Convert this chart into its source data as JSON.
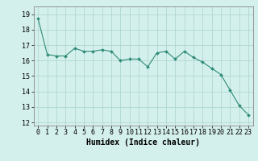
{
  "x": [
    0,
    1,
    2,
    3,
    4,
    5,
    6,
    7,
    8,
    9,
    10,
    11,
    12,
    13,
    14,
    15,
    16,
    17,
    18,
    19,
    20,
    21,
    22,
    23
  ],
  "y": [
    18.7,
    16.4,
    16.3,
    16.3,
    16.8,
    16.6,
    16.6,
    16.7,
    16.6,
    16.0,
    16.1,
    16.1,
    15.6,
    16.5,
    16.6,
    16.1,
    16.6,
    16.2,
    15.9,
    15.5,
    15.1,
    14.1,
    13.1,
    12.5
  ],
  "line_color": "#2e8b78",
  "marker_color": "#2e8b78",
  "bg_color": "#d4f0ec",
  "grid_color": "#b0d8d4",
  "xlabel": "Humidex (Indice chaleur)",
  "ylim": [
    11.8,
    19.5
  ],
  "xlim": [
    -0.5,
    23.5
  ],
  "yticks": [
    12,
    13,
    14,
    15,
    16,
    17,
    18,
    19
  ],
  "xticks": [
    0,
    1,
    2,
    3,
    4,
    5,
    6,
    7,
    8,
    9,
    10,
    11,
    12,
    13,
    14,
    15,
    16,
    17,
    18,
    19,
    20,
    21,
    22,
    23
  ],
  "tick_font_size": 6,
  "label_font_size": 7
}
